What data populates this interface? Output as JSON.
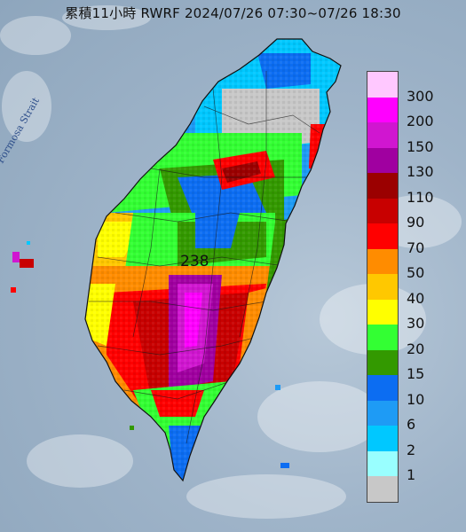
{
  "title": "累積11小時 RWRF 2024/07/26 07:30~07/26 18:30",
  "strait_label": "Formosa Strait",
  "max_value_label": "238",
  "legend": {
    "labels": [
      "300",
      "200",
      "150",
      "130",
      "110",
      "90",
      "70",
      "50",
      "40",
      "30",
      "20",
      "15",
      "10",
      "6",
      "2",
      "1"
    ],
    "colors": [
      "#ffc8ff",
      "#ff00ff",
      "#d016d0",
      "#a000a0",
      "#9b0000",
      "#c80000",
      "#ff0000",
      "#ff8c00",
      "#ffc800",
      "#ffff00",
      "#33ff33",
      "#339900",
      "#0c6df2",
      "#1e9bf5",
      "#00c8ff",
      "#99ffff",
      "#c8c8c8"
    ]
  }
}
